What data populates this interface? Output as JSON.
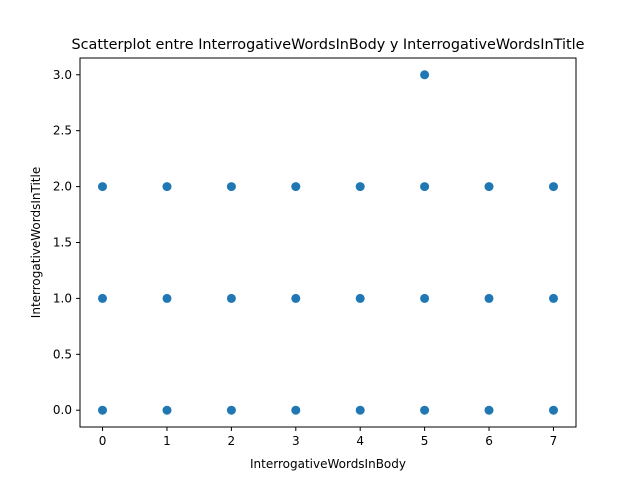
{
  "chart_data": {
    "type": "scatter",
    "title": "Scatterplot entre InterrogativeWordsInBody y InterrogativeWordsInTitle",
    "xlabel": "InterrogativeWordsInBody",
    "ylabel": "InterrogativeWordsInTitle",
    "xlim": [
      -0.35,
      7.35
    ],
    "ylim": [
      -0.15,
      3.15
    ],
    "xticks": [
      0,
      1,
      2,
      3,
      4,
      5,
      6,
      7
    ],
    "xtick_labels": [
      "0",
      "1",
      "2",
      "3",
      "4",
      "5",
      "6",
      "7"
    ],
    "yticks": [
      0.0,
      0.5,
      1.0,
      1.5,
      2.0,
      2.5,
      3.0
    ],
    "ytick_labels": [
      "0.0",
      "0.5",
      "1.0",
      "1.5",
      "2.0",
      "2.5",
      "3.0"
    ],
    "grid": false,
    "marker_color": "#1f77b4",
    "points": [
      {
        "x": 0,
        "y": 0
      },
      {
        "x": 0,
        "y": 1
      },
      {
        "x": 0,
        "y": 2
      },
      {
        "x": 1,
        "y": 0
      },
      {
        "x": 1,
        "y": 1
      },
      {
        "x": 1,
        "y": 2
      },
      {
        "x": 2,
        "y": 0
      },
      {
        "x": 2,
        "y": 1
      },
      {
        "x": 2,
        "y": 2
      },
      {
        "x": 3,
        "y": 0
      },
      {
        "x": 3,
        "y": 1
      },
      {
        "x": 3,
        "y": 2
      },
      {
        "x": 4,
        "y": 0
      },
      {
        "x": 4,
        "y": 1
      },
      {
        "x": 4,
        "y": 2
      },
      {
        "x": 5,
        "y": 0
      },
      {
        "x": 5,
        "y": 1
      },
      {
        "x": 5,
        "y": 2
      },
      {
        "x": 5,
        "y": 3
      },
      {
        "x": 6,
        "y": 0
      },
      {
        "x": 6,
        "y": 1
      },
      {
        "x": 6,
        "y": 2
      },
      {
        "x": 7,
        "y": 0
      },
      {
        "x": 7,
        "y": 1
      },
      {
        "x": 7,
        "y": 2
      }
    ]
  }
}
